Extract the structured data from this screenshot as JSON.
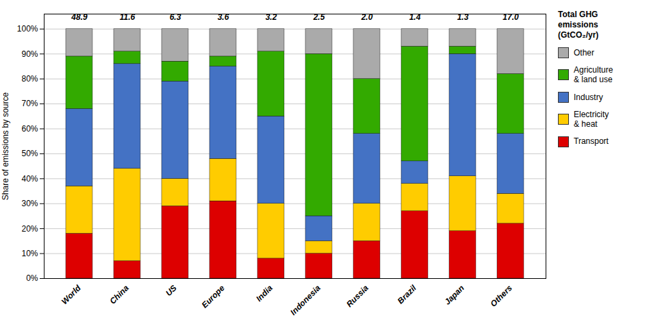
{
  "chart_data": {
    "type": "bar",
    "stacked": true,
    "categories": [
      "World",
      "China",
      "US",
      "Europe",
      "India",
      "Indonesia",
      "Russia",
      "Brazil",
      "Japan",
      "Others"
    ],
    "series": [
      {
        "name": "Transport",
        "color": "#dd0000",
        "values": [
          18,
          7,
          29,
          31,
          8,
          10,
          15,
          27,
          19,
          22
        ]
      },
      {
        "name": "Electricity\n& heat",
        "color": "#ffcc00",
        "values": [
          19,
          37,
          11,
          17,
          22,
          5,
          15,
          11,
          22,
          12
        ]
      },
      {
        "name": "Industry",
        "color": "#4472c4",
        "values": [
          31,
          42,
          39,
          37,
          35,
          10,
          28,
          9,
          49,
          24
        ]
      },
      {
        "name": "Agriculture\n& land use",
        "color": "#33aa00",
        "values": [
          21,
          5,
          8,
          4,
          26,
          65,
          22,
          46,
          3,
          24
        ]
      },
      {
        "name": "Other",
        "color": "#aaaaaa",
        "values": [
          11,
          9,
          13,
          11,
          9,
          10,
          20,
          7,
          7,
          18
        ]
      }
    ],
    "totals": [
      "48.9",
      "11.6",
      "6.3",
      "3.6",
      "3.2",
      "2.5",
      "2.0",
      "1.4",
      "1.3",
      "17.0"
    ],
    "ylabel": "Share of emissions by source",
    "legend_title": "Total GHG\nemissions\n(GtCO₂/yr)",
    "ylim": [
      0,
      106
    ],
    "yticks": [
      {
        "value": 0,
        "label": "0%"
      },
      {
        "value": 10,
        "label": "10%"
      },
      {
        "value": 20,
        "label": "20%"
      },
      {
        "value": 30,
        "label": "30%"
      },
      {
        "value": 40,
        "label": "40%"
      },
      {
        "value": 50,
        "label": "50%"
      },
      {
        "value": 60,
        "label": "60%"
      },
      {
        "value": 70,
        "label": "70%"
      },
      {
        "value": 80,
        "label": "80%"
      },
      {
        "value": 90,
        "label": "90%"
      },
      {
        "value": 100,
        "label": "100%"
      }
    ],
    "grid": true,
    "legend": "right"
  }
}
